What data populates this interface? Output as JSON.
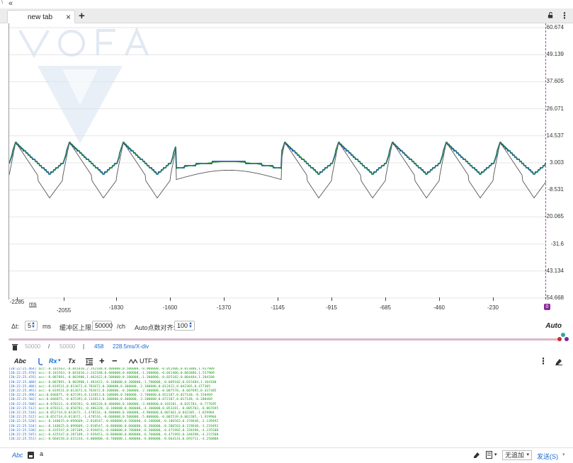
{
  "window": {
    "collapse_glyph": "«",
    "corner_mark": "\\"
  },
  "tabs": [
    {
      "label": "new tab",
      "close": "×"
    }
  ],
  "tab_add": "+",
  "tab_menu": "⋮",
  "y_axis": {
    "labels": [
      "60.674",
      "49.139",
      "37.605",
      "26.071",
      "14.537",
      "3.003",
      "-8.531",
      "-20.065",
      "-31.6",
      "-43.134",
      "-54.668"
    ]
  },
  "x_axis": {
    "unit": "ms",
    "labels": [
      "-2285",
      "-2055",
      "-1830",
      "-1600",
      "-1370",
      "-1145",
      "-915",
      "-685",
      "-460",
      "-230",
      "0"
    ]
  },
  "chart_data": {
    "type": "line",
    "ylim": [
      -54.668,
      60.674
    ],
    "xlim": [
      -2285,
      0
    ],
    "series": [
      {
        "color": "#1d57a8",
        "amplitude": 0.95,
        "offset": 3.0
      },
      {
        "color": "#2a9a2a",
        "amplitude": 1.0,
        "offset": 3.0
      },
      {
        "color": "#555555",
        "amplitude": 1.35,
        "offset": 1.2
      }
    ]
  },
  "params": {
    "dt_label": "Δt:",
    "dt_value": "5",
    "dt_unit": "ms",
    "buffer_label": "缓冲区上限:",
    "buffer_value": "50000",
    "buffer_unit": "/ch",
    "align_label": "Auto点数对齐:",
    "align_value": "100",
    "auto_label": "Auto"
  },
  "counts": {
    "buffer_a": "50000",
    "slash": "/",
    "buffer_b": "50000",
    "sep": "|",
    "points": "458",
    "scale": "228.5ms/X-div"
  },
  "toolbar": {
    "abc": "Abc",
    "rx": "Rx",
    "tx": "Tx",
    "plus": "+",
    "minus": "−",
    "encoding": "UTF-8",
    "menu": "⋮"
  },
  "log": [
    {
      "ts": "[20:22:25.464]",
      "data": " acc:-0.101563,-0.041016,2.242188,0.400000,0.500000,-0.900000,-0.051406,0.013886,1.927909"
    },
    {
      "ts": "[20:22:25.470]",
      "data": " acc:-0.101563,-0.041016,2.242188,0.400000,0.400000,-1.200000,-0.041406,0.003886,1.557909"
    },
    {
      "ts": "[20:22:25.476]",
      "data": " acc:-0.087891,-0.003906,1.482422,0.500000,0.100000,-1.300000,-0.025102,0.004484,1.204180"
    },
    {
      "ts": "[20:22:25.480]",
      "data": " acc:-0.087891,-0.003906,1.482422,-0.100000,0.200000,-1.700000,-0.069102,0.015484,1.164180"
    },
    {
      "ts": "[20:22:25.486]",
      "data": " acc:-0.019531,0.013672,0.783672,0.300000,0.300000,-2.100000,0.012422,0.042305,0.477305"
    },
    {
      "ts": "[20:22:25.491]",
      "data": " acc:-0.019531,0.013672,0.783672,0.100000,-0.200000,-2.300000,-0.007578,-0.007695,0.437305"
    },
    {
      "ts": "[20:22:25.496]",
      "data": " acc:0.046875,-0.025391,0.132813,0.100000,0.500000,-2.700000,0.052187,0.027148,-0.150469"
    },
    {
      "ts": "[20:22:25.502]",
      "data": " acc:0.046875,-0.025391,0.132813,0.300000,0.400000,-3.200000,0.072187,0.017148,-0.200469"
    },
    {
      "ts": "[20:22:25.508]",
      "data": " acc:0.070313,-0.050781,-0.486328,0.400000,0.100000,-3.400000,0.103281,-0.035703,-0.777695"
    },
    {
      "ts": "[20:22:25.512]",
      "data": " acc:0.070313,-0.050781,-0.486328,-0.100000,0.400000,-4.300000,0.053281,-0.005703,-0.867695"
    },
    {
      "ts": "[20:22:25.518]",
      "data": " acc:0.052734,0.013672,-1.478516,-0.400000,0.300000,-4.900000,0.007461,0.042305,-1.829904"
    },
    {
      "ts": "[20:22:25.522]",
      "data": " acc:0.052734,0.013672,-1.478516,-0.600000,0.500000,-5.800000,-0.002539,0.062305,-1.919904"
    },
    {
      "ts": "[20:22:25.528]",
      "data": " acc:-0.140625,0.099609,-2.810547,-0.800000,0.500000,-6.100000,-0.186563,0.159648,-3.139492"
    },
    {
      "ts": "[20:22:25.534]",
      "data": " acc:-0.140625,0.099609,-2.810547,-0.800000,0.600000,-6.300000,-0.206563,0.159648,-3.219492"
    },
    {
      "ts": "[20:22:25.538]",
      "data": " acc:-0.435547,0.287109,-3.939453,-0.600000,0.700000,-6.300000,-0.471992,0.328398,-4.235508"
    },
    {
      "ts": "[20:22:25.545]",
      "data": " acc:-0.435547,0.287109,-3.939453,-0.800000,0.800000,-6.700000,-0.471992,0.348398,-4.215508"
    },
    {
      "ts": "[20:22:25.551]",
      "data": " acc:-0.660156,0.615234,-4.000000,-0.700000,1.400000,-6.800000,-0.664141,0.693711,-4.250000"
    }
  ],
  "sendbar": {
    "abc": "Abc",
    "input_value": "a",
    "mode_value": "无追加",
    "send_label": "发送(S)"
  },
  "colors": {
    "accent": "#1a6ad0",
    "series_blue": "#1d57a8",
    "series_green": "#2a9a2a",
    "series_gray": "#555555",
    "divider": "#d8b8c8"
  }
}
